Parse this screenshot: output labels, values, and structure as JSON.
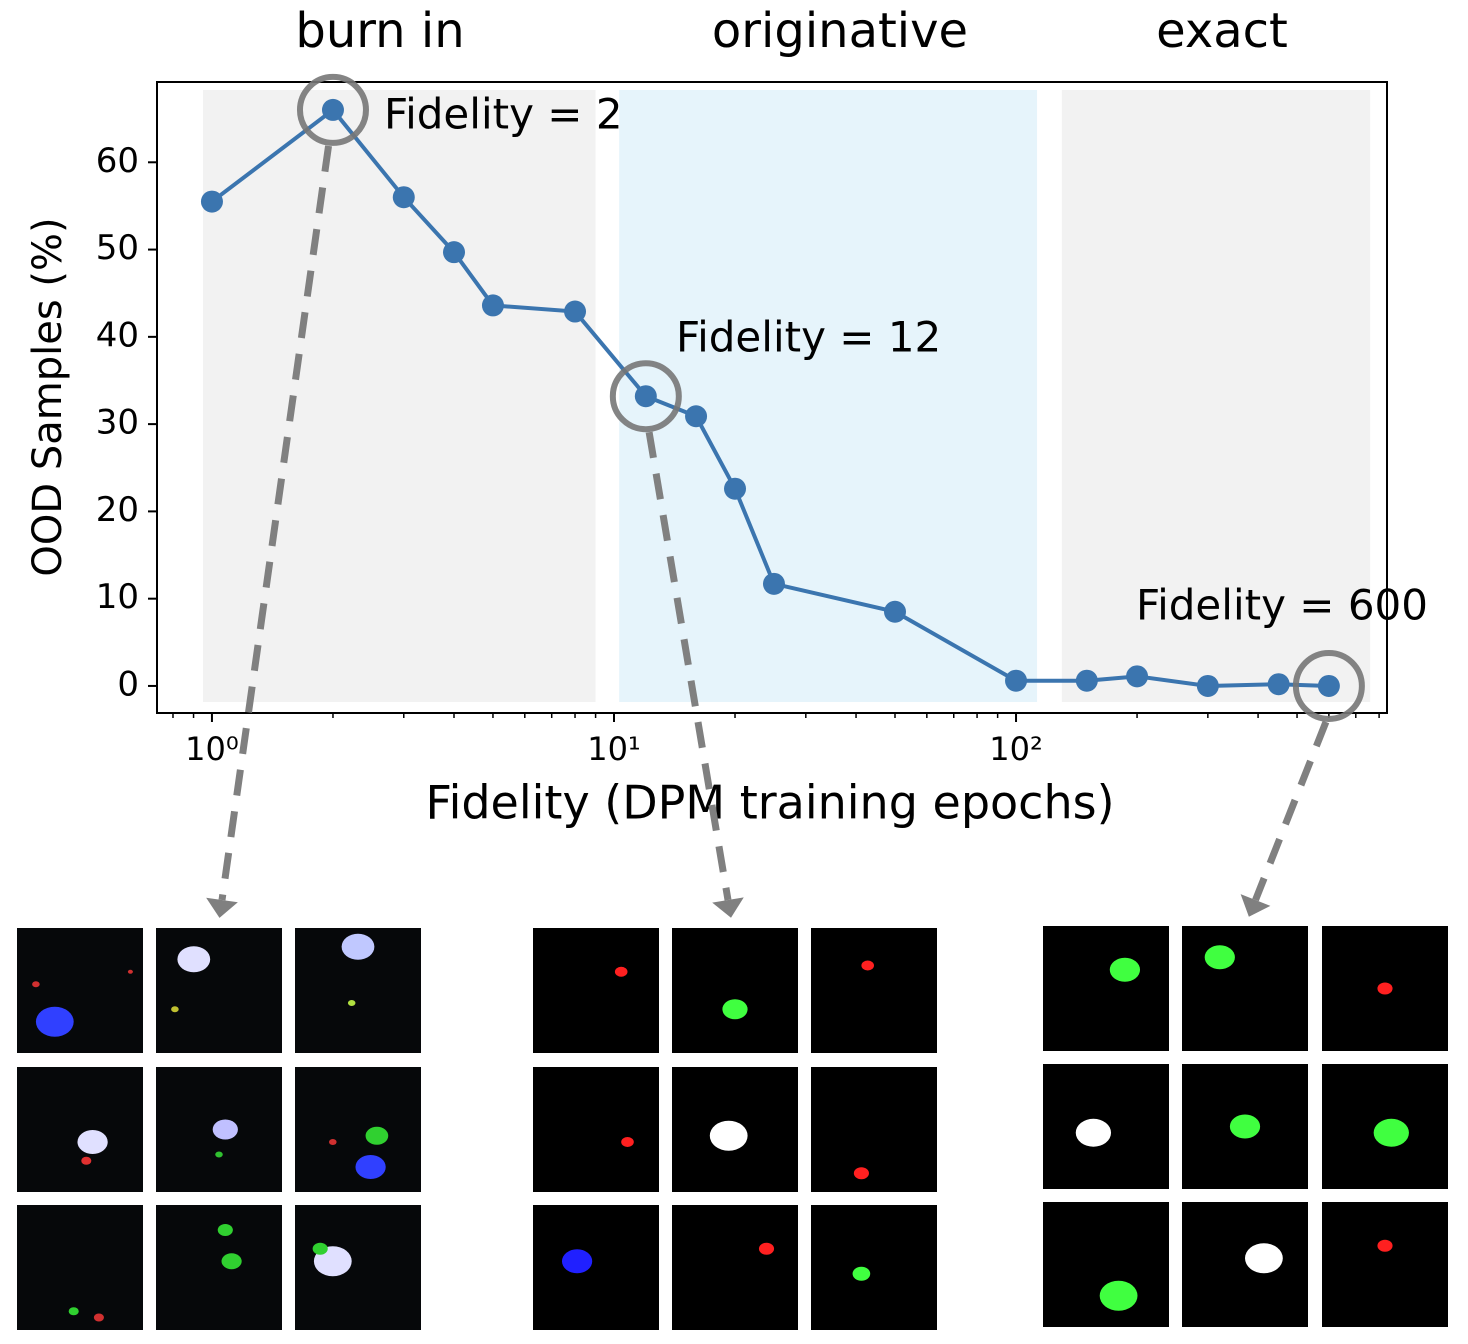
{
  "chart_data": {
    "type": "line",
    "x_label": "Fidelity (DPM training epochs)",
    "y_label": "OOD Samples (%)",
    "x_log": true,
    "x": [
      1,
      2,
      3,
      4,
      5,
      8,
      12,
      16,
      20,
      25,
      50,
      100,
      150,
      200,
      300,
      450,
      600
    ],
    "series": [
      {
        "color": "#3b75af",
        "values": [
          55.5,
          66.0,
          56.0,
          49.7,
          43.6,
          42.9,
          33.2,
          30.9,
          22.6,
          11.7,
          8.5,
          0.6,
          0.6,
          1.1,
          0.0,
          0.2,
          0.0
        ]
      }
    ],
    "xlim": [
      0.73,
      837
    ],
    "ylim": [
      -3.1,
      69.2
    ],
    "xticks": [
      {
        "value": 1,
        "label": "10⁰"
      },
      {
        "value": 10,
        "label": "10¹"
      },
      {
        "value": 100,
        "label": "10²"
      }
    ],
    "xminorticks": [
      0.8,
      0.9,
      2,
      3,
      4,
      5,
      6,
      7,
      8,
      9,
      20,
      30,
      40,
      50,
      60,
      70,
      80,
      90,
      200,
      300,
      400,
      500,
      600,
      700,
      800
    ],
    "yticks": [
      0,
      10,
      20,
      30,
      40,
      50,
      60
    ],
    "regions": [
      {
        "label": "burn in",
        "color": "#f2f2f2",
        "x": [
          0.95,
          9.0
        ]
      },
      {
        "label": "originative",
        "color": "#e6f4fb",
        "x": [
          10.3,
          112.8
        ]
      },
      {
        "label": "exact",
        "color": "#f2f2f2",
        "x": [
          130,
          760
        ]
      }
    ],
    "annotations": [
      {
        "text": "Fidelity = 2",
        "x": 2,
        "y": 66.0
      },
      {
        "text": "Fidelity = 12",
        "x": 12,
        "y": 33.2
      },
      {
        "text": "Fidelity = 600",
        "x": 600,
        "y": 0.0
      }
    ]
  }
}
